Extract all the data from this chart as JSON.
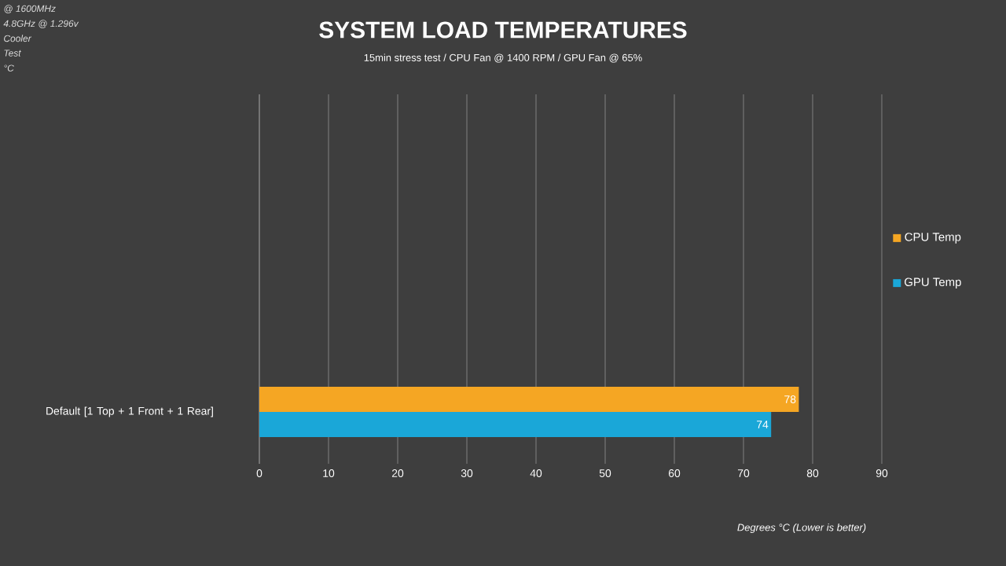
{
  "chart_data": {
    "type": "bar",
    "orientation": "horizontal",
    "title": "SYSTEM LOAD TEMPERATURES",
    "subtitle": "15min stress test / CPU Fan @ 1400 RPM / GPU Fan @ 65%",
    "xlabel": "Degrees °C (Lower is better)",
    "annotations": [
      "@ 1600MHz",
      "4.8GHz @ 1.296v",
      "Cooler",
      "Test",
      "°C"
    ],
    "categories": [
      "Default [1 Top + 1 Front + 1 Rear]"
    ],
    "series": [
      {
        "name": "CPU Temp",
        "color": "#f5a623",
        "values": [
          78
        ]
      },
      {
        "name": "GPU Temp",
        "color": "#1aa7d8",
        "values": [
          74
        ]
      }
    ],
    "xlim": [
      0,
      90
    ],
    "xticks": [
      0,
      10,
      20,
      30,
      40,
      50,
      60,
      70,
      80,
      90
    ],
    "grid": "x",
    "legend": "right",
    "data_labels": true
  }
}
